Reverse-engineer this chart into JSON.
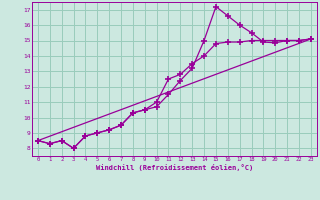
{
  "background_color": "#cce8e0",
  "grid_color": "#99ccbb",
  "line_color": "#990099",
  "marker": "+",
  "markersize": 4,
  "linewidth": 0.9,
  "xlabel": "Windchill (Refroidissement éolien,°C)",
  "xlim": [
    -0.5,
    23.5
  ],
  "ylim": [
    7.5,
    17.5
  ],
  "xtick_labels": [
    "0",
    "1",
    "2",
    "3",
    "4",
    "5",
    "6",
    "7",
    "8",
    "9",
    "10",
    "11",
    "12",
    "13",
    "14",
    "15",
    "16",
    "17",
    "18",
    "19",
    "20",
    "21",
    "22",
    "23"
  ],
  "ytick_labels": [
    "8",
    "9",
    "10",
    "11",
    "12",
    "13",
    "14",
    "15",
    "16",
    "17"
  ],
  "ytick_vals": [
    8,
    9,
    10,
    11,
    12,
    13,
    14,
    15,
    16,
    17
  ],
  "line1_x": [
    0,
    1,
    2,
    3,
    4,
    5,
    6,
    7,
    8,
    9,
    10,
    11,
    12,
    13,
    14,
    15,
    16,
    17,
    18,
    19,
    20,
    21,
    22,
    23
  ],
  "line1_y": [
    8.5,
    8.3,
    8.5,
    8.0,
    8.8,
    9.0,
    9.2,
    9.5,
    10.3,
    10.5,
    10.7,
    11.5,
    12.4,
    13.2,
    15.0,
    17.2,
    16.6,
    16.0,
    15.5,
    14.9,
    14.85,
    15.0,
    15.0,
    15.1
  ],
  "line2_x": [
    0,
    1,
    2,
    3,
    4,
    5,
    6,
    7,
    8,
    9,
    10,
    11,
    12,
    13,
    14,
    15,
    16,
    17,
    18,
    19,
    20,
    21,
    22,
    23
  ],
  "line2_y": [
    8.5,
    8.3,
    8.5,
    8.0,
    8.8,
    9.0,
    9.2,
    9.5,
    10.3,
    10.5,
    11.0,
    12.5,
    12.8,
    13.5,
    14.0,
    14.8,
    14.9,
    14.9,
    15.0,
    15.0,
    15.0,
    15.0,
    15.0,
    15.1
  ],
  "line3_x": [
    0,
    23
  ],
  "line3_y": [
    8.5,
    15.1
  ]
}
